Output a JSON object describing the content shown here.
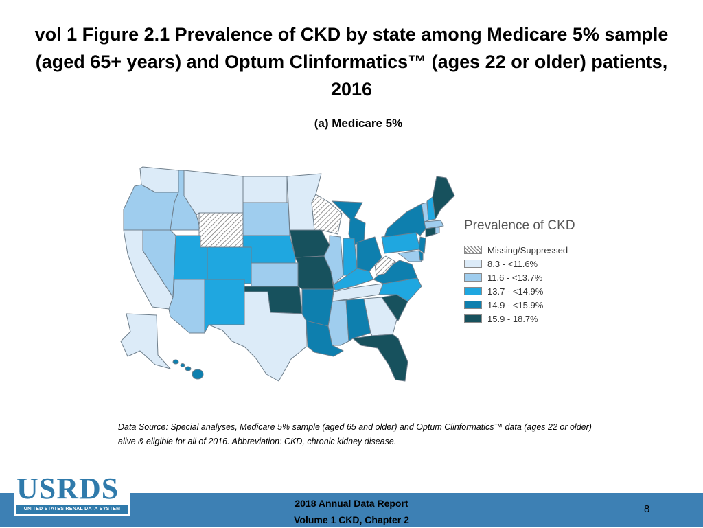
{
  "slide": {
    "title": "vol 1 Figure 2.1 Prevalence of CKD by state among Medicare 5% sample (aged 65+ years) and Optum Clinformatics™ (ages 22 or older) patients, 2016",
    "subtitle": "(a) Medicare 5%",
    "source": "Data Source: Special analyses, Medicare 5% sample (aged 65 and older) and Optum Clinformatics™ data (ages 22 or older) alive & eligible for all of 2016. Abbreviation: CKD, chronic kidney disease."
  },
  "legend": {
    "title": "Prevalence of CKD",
    "items": [
      {
        "label": "Missing/Suppressed",
        "color": "hatch"
      },
      {
        "label": "8.3 - <11.6%",
        "color": "#dcebf8"
      },
      {
        "label": "11.6 - <13.7%",
        "color": "#9fcdee"
      },
      {
        "label": "13.7 - <14.9%",
        "color": "#1fa7e0"
      },
      {
        "label": "14.9 - <15.9%",
        "color": "#0e7fae"
      },
      {
        "label": "15.9 - 18.7%",
        "color": "#17515d"
      }
    ]
  },
  "footer": {
    "logo_text": "USRDS",
    "logo_subtext": "UNITED STATES RENAL DATA SYSTEM",
    "report_line1": "2018 Annual Data Report",
    "report_line2": "Volume 1 CKD, Chapter 2",
    "page_number": "8"
  }
}
